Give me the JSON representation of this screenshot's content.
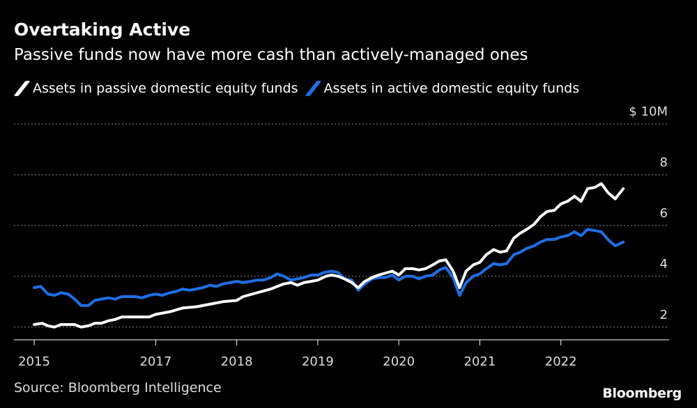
{
  "title": "Overtaking Active",
  "subtitle": "Passive funds now have more cash than actively-managed ones",
  "source": "Source: Bloomberg Intelligence",
  "logo": "Bloomberg",
  "chart_data": {
    "type": "line",
    "title": "Overtaking Active",
    "subtitle": "Passive funds now have more cash than actively-managed ones",
    "xlabel": "",
    "ylabel": "",
    "y_unit_label": "$ 10M",
    "ylim": [
      1.5,
      10
    ],
    "y_ticks": [
      2,
      4,
      6,
      8,
      10
    ],
    "y_tick_labels": [
      "2",
      "4",
      "6",
      "8",
      "$ 10M"
    ],
    "xlim": [
      2015.0,
      2022.75
    ],
    "x_tick_labels": [
      "2015",
      "2017",
      "2018",
      "2019",
      "2020",
      "2021",
      "2022"
    ],
    "x_tick_positions": [
      2015.0,
      2016.5,
      2017.5,
      2018.5,
      2019.5,
      2020.5,
      2021.5
    ],
    "legend": [
      "Assets in passive domestic equity funds",
      "Assets in active domestic equity funds"
    ],
    "series": [
      {
        "name": "Assets in passive domestic equity funds",
        "color": "#ffffff",
        "points": [
          [
            2015.0,
            2.1
          ],
          [
            2015.1,
            2.15
          ],
          [
            2015.17,
            2.05
          ],
          [
            2015.25,
            2.0
          ],
          [
            2015.33,
            2.1
          ],
          [
            2015.5,
            2.1
          ],
          [
            2015.58,
            2.0
          ],
          [
            2015.67,
            2.05
          ],
          [
            2015.75,
            2.15
          ],
          [
            2015.83,
            2.15
          ],
          [
            2015.92,
            2.25
          ],
          [
            2016.0,
            2.3
          ],
          [
            2016.08,
            2.4
          ],
          [
            2016.25,
            2.4
          ],
          [
            2016.42,
            2.4
          ],
          [
            2016.5,
            2.5
          ],
          [
            2016.67,
            2.6
          ],
          [
            2016.83,
            2.75
          ],
          [
            2017.0,
            2.8
          ],
          [
            2017.17,
            2.9
          ],
          [
            2017.33,
            3.0
          ],
          [
            2017.5,
            3.05
          ],
          [
            2017.58,
            3.2
          ],
          [
            2017.75,
            3.35
          ],
          [
            2017.92,
            3.5
          ],
          [
            2018.0,
            3.6
          ],
          [
            2018.08,
            3.7
          ],
          [
            2018.17,
            3.75
          ],
          [
            2018.25,
            3.65
          ],
          [
            2018.33,
            3.75
          ],
          [
            2018.42,
            3.8
          ],
          [
            2018.5,
            3.85
          ],
          [
            2018.6,
            4.0
          ],
          [
            2018.67,
            4.05
          ],
          [
            2018.75,
            4.0
          ],
          [
            2018.83,
            3.9
          ],
          [
            2018.92,
            3.75
          ],
          [
            2019.0,
            3.55
          ],
          [
            2019.08,
            3.8
          ],
          [
            2019.17,
            3.95
          ],
          [
            2019.25,
            4.05
          ],
          [
            2019.42,
            4.2
          ],
          [
            2019.5,
            4.05
          ],
          [
            2019.58,
            4.3
          ],
          [
            2019.67,
            4.3
          ],
          [
            2019.75,
            4.25
          ],
          [
            2019.83,
            4.3
          ],
          [
            2019.92,
            4.45
          ],
          [
            2020.0,
            4.6
          ],
          [
            2020.08,
            4.65
          ],
          [
            2020.17,
            4.2
          ],
          [
            2020.25,
            3.55
          ],
          [
            2020.33,
            4.2
          ],
          [
            2020.42,
            4.45
          ],
          [
            2020.5,
            4.55
          ],
          [
            2020.58,
            4.85
          ],
          [
            2020.67,
            5.05
          ],
          [
            2020.75,
            4.95
          ],
          [
            2020.83,
            5.0
          ],
          [
            2020.92,
            5.5
          ],
          [
            2021.0,
            5.7
          ],
          [
            2021.08,
            5.85
          ],
          [
            2021.17,
            6.05
          ],
          [
            2021.25,
            6.35
          ],
          [
            2021.33,
            6.55
          ],
          [
            2021.42,
            6.6
          ],
          [
            2021.5,
            6.85
          ],
          [
            2021.58,
            6.95
          ],
          [
            2021.67,
            7.15
          ],
          [
            2021.75,
            6.95
          ],
          [
            2021.83,
            7.45
          ],
          [
            2021.92,
            7.5
          ],
          [
            2022.0,
            7.65
          ],
          [
            2022.08,
            7.3
          ],
          [
            2022.17,
            7.05
          ],
          [
            2022.27,
            7.45
          ]
        ]
      },
      {
        "name": "Assets in active domestic equity funds",
        "color": "#1e6fe6",
        "points": [
          [
            2015.0,
            3.55
          ],
          [
            2015.08,
            3.6
          ],
          [
            2015.17,
            3.3
          ],
          [
            2015.25,
            3.25
          ],
          [
            2015.33,
            3.35
          ],
          [
            2015.42,
            3.3
          ],
          [
            2015.5,
            3.1
          ],
          [
            2015.58,
            2.85
          ],
          [
            2015.67,
            2.85
          ],
          [
            2015.75,
            3.05
          ],
          [
            2015.83,
            3.1
          ],
          [
            2015.92,
            3.15
          ],
          [
            2016.0,
            3.1
          ],
          [
            2016.08,
            3.2
          ],
          [
            2016.25,
            3.2
          ],
          [
            2016.33,
            3.15
          ],
          [
            2016.42,
            3.25
          ],
          [
            2016.5,
            3.3
          ],
          [
            2016.58,
            3.25
          ],
          [
            2016.67,
            3.35
          ],
          [
            2016.75,
            3.4
          ],
          [
            2016.83,
            3.5
          ],
          [
            2016.92,
            3.45
          ],
          [
            2017.0,
            3.5
          ],
          [
            2017.08,
            3.55
          ],
          [
            2017.17,
            3.65
          ],
          [
            2017.25,
            3.6
          ],
          [
            2017.33,
            3.7
          ],
          [
            2017.42,
            3.75
          ],
          [
            2017.5,
            3.8
          ],
          [
            2017.58,
            3.75
          ],
          [
            2017.67,
            3.8
          ],
          [
            2017.75,
            3.85
          ],
          [
            2017.83,
            3.85
          ],
          [
            2017.92,
            3.95
          ],
          [
            2018.0,
            4.1
          ],
          [
            2018.08,
            4.0
          ],
          [
            2018.17,
            3.85
          ],
          [
            2018.25,
            3.9
          ],
          [
            2018.33,
            3.95
          ],
          [
            2018.42,
            4.05
          ],
          [
            2018.5,
            4.05
          ],
          [
            2018.58,
            4.15
          ],
          [
            2018.67,
            4.2
          ],
          [
            2018.75,
            4.15
          ],
          [
            2018.83,
            3.9
          ],
          [
            2018.92,
            3.85
          ],
          [
            2019.0,
            3.45
          ],
          [
            2019.08,
            3.7
          ],
          [
            2019.17,
            3.9
          ],
          [
            2019.25,
            3.95
          ],
          [
            2019.33,
            3.95
          ],
          [
            2019.42,
            4.05
          ],
          [
            2019.5,
            3.85
          ],
          [
            2019.58,
            4.0
          ],
          [
            2019.67,
            4.0
          ],
          [
            2019.75,
            3.9
          ],
          [
            2019.83,
            4.0
          ],
          [
            2019.92,
            4.05
          ],
          [
            2020.0,
            4.25
          ],
          [
            2020.08,
            4.35
          ],
          [
            2020.17,
            3.95
          ],
          [
            2020.25,
            3.25
          ],
          [
            2020.33,
            3.75
          ],
          [
            2020.42,
            4.0
          ],
          [
            2020.5,
            4.1
          ],
          [
            2020.58,
            4.3
          ],
          [
            2020.67,
            4.5
          ],
          [
            2020.75,
            4.45
          ],
          [
            2020.83,
            4.5
          ],
          [
            2020.92,
            4.85
          ],
          [
            2021.0,
            4.95
          ],
          [
            2021.08,
            5.1
          ],
          [
            2021.17,
            5.2
          ],
          [
            2021.25,
            5.35
          ],
          [
            2021.33,
            5.45
          ],
          [
            2021.42,
            5.45
          ],
          [
            2021.5,
            5.55
          ],
          [
            2021.58,
            5.6
          ],
          [
            2021.67,
            5.75
          ],
          [
            2021.75,
            5.6
          ],
          [
            2021.83,
            5.85
          ],
          [
            2021.92,
            5.8
          ],
          [
            2022.0,
            5.75
          ],
          [
            2022.08,
            5.45
          ],
          [
            2022.17,
            5.2
          ],
          [
            2022.27,
            5.35
          ]
        ]
      }
    ]
  }
}
